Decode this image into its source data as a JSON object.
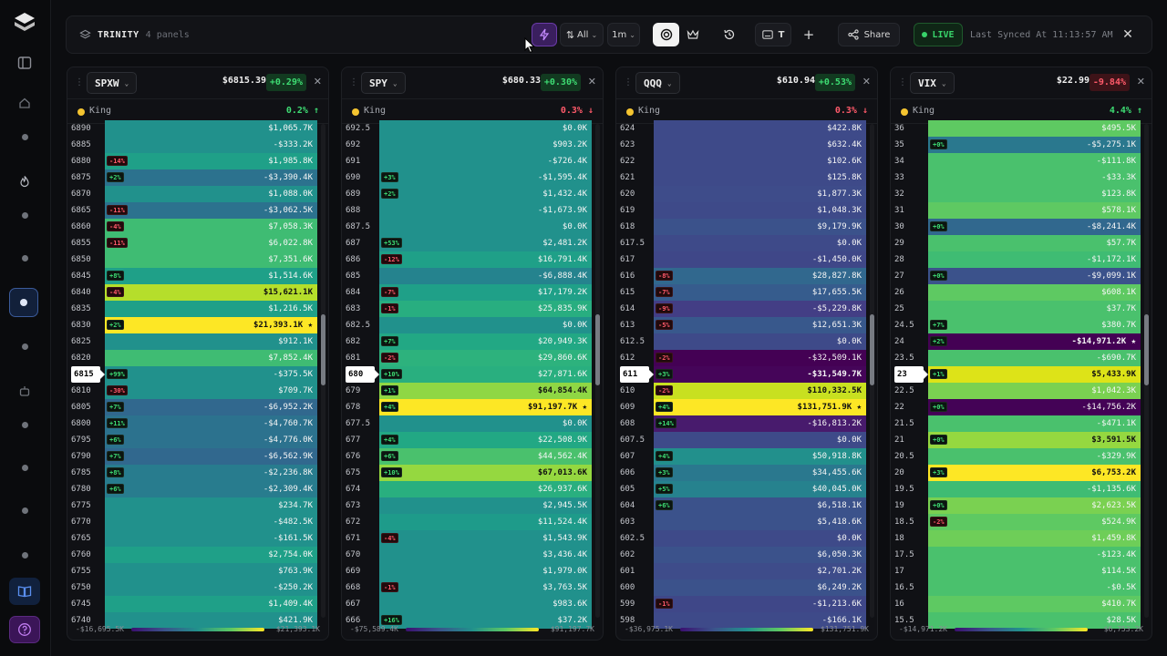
{
  "topbar": {
    "title": "TRINITY",
    "subtitle": "4 panels",
    "sort_label": "All",
    "interval_label": "1m",
    "t_label": "T",
    "share_label": "Share",
    "live_label": "LIVE",
    "sync_text": "Last Synced At 11:13:57 AM"
  },
  "panels": [
    {
      "id": "spxw",
      "ticker": "SPXW",
      "price": "$6815.39",
      "change": "+0.29%",
      "change_dir": "up",
      "king_label": "King",
      "king_value": "0.2% ↑",
      "king_dir": "up",
      "scale_min": "-$16,695.5K",
      "scale_max": "$21,393.1K",
      "thumb_pos": 0.45,
      "rows": [
        {
          "s": "6890",
          "v": "$1,065.7K",
          "c": "#21918c"
        },
        {
          "s": "6885",
          "v": "-$333.2K",
          "c": "#21918c"
        },
        {
          "s": "6880",
          "v": "$1,985.8K",
          "c": "#1fa088",
          "b": "-14%"
        },
        {
          "s": "6875",
          "v": "-$3,390.4K",
          "c": "#2c728e",
          "b": "+2%"
        },
        {
          "s": "6870",
          "v": "$1,088.0K",
          "c": "#21918c"
        },
        {
          "s": "6865",
          "v": "-$3,062.5K",
          "c": "#2c728e",
          "b": "-11%"
        },
        {
          "s": "6860",
          "v": "$7,058.3K",
          "c": "#3fbc73",
          "b": "-4%"
        },
        {
          "s": "6855",
          "v": "$6,022.8K",
          "c": "#3fbc73",
          "b": "-11%"
        },
        {
          "s": "6850",
          "v": "$7,351.6K",
          "c": "#3fbc73"
        },
        {
          "s": "6845",
          "v": "$1,514.6K",
          "c": "#1fa088",
          "b": "+8%"
        },
        {
          "s": "6840",
          "v": "$15,621.1K",
          "c": "#b5de2b",
          "b": "-4%"
        },
        {
          "s": "6835",
          "v": "$1,216.5K",
          "c": "#1fa088"
        },
        {
          "s": "6830",
          "v": "$21,393.1K",
          "c": "#fde725",
          "b": "+2%",
          "star": true
        },
        {
          "s": "6825",
          "v": "$912.1K",
          "c": "#21918c"
        },
        {
          "s": "6820",
          "v": "$7,852.4K",
          "c": "#3fbc73"
        },
        {
          "s": "6815",
          "v": "-$375.5K",
          "c": "#21918c",
          "b": "+99%",
          "cur": true
        },
        {
          "s": "6810",
          "v": "$709.7K",
          "c": "#21918c",
          "b": "-30%"
        },
        {
          "s": "6805",
          "v": "-$6,952.2K",
          "c": "#31688e",
          "b": "+7%"
        },
        {
          "s": "6800",
          "v": "-$4,760.7K",
          "c": "#2c728e",
          "b": "+11%"
        },
        {
          "s": "6795",
          "v": "-$4,776.0K",
          "c": "#2c728e",
          "b": "+6%"
        },
        {
          "s": "6790",
          "v": "-$6,562.9K",
          "c": "#31688e",
          "b": "+7%"
        },
        {
          "s": "6785",
          "v": "-$2,236.8K",
          "c": "#287c8e",
          "b": "+8%"
        },
        {
          "s": "6780",
          "v": "-$2,309.4K",
          "c": "#287c8e",
          "b": "+6%"
        },
        {
          "s": "6775",
          "v": "$234.7K",
          "c": "#21918c"
        },
        {
          "s": "6770",
          "v": "-$482.5K",
          "c": "#21918c"
        },
        {
          "s": "6765",
          "v": "-$161.5K",
          "c": "#21918c"
        },
        {
          "s": "6760",
          "v": "$2,754.0K",
          "c": "#1fa088"
        },
        {
          "s": "6755",
          "v": "$763.9K",
          "c": "#21918c"
        },
        {
          "s": "6750",
          "v": "-$250.2K",
          "c": "#21918c"
        },
        {
          "s": "6745",
          "v": "$1,409.4K",
          "c": "#1fa088"
        },
        {
          "s": "6740",
          "v": "$421.9K",
          "c": "#21918c"
        }
      ]
    },
    {
      "id": "spy",
      "ticker": "SPY",
      "price": "$680.33",
      "change": "+0.30%",
      "change_dir": "up",
      "king_label": "King",
      "king_value": "0.3% ↓",
      "king_dir": "dn",
      "scale_min": "-$75,589.4K",
      "scale_max": "$91,197.7K",
      "thumb_pos": 0.45,
      "rows": [
        {
          "s": "692.5",
          "v": "$0.0K",
          "c": "#21918c"
        },
        {
          "s": "692",
          "v": "$903.2K",
          "c": "#21918c"
        },
        {
          "s": "691",
          "v": "-$726.4K",
          "c": "#21918c"
        },
        {
          "s": "690",
          "v": "-$1,595.4K",
          "c": "#21918c",
          "b": "+3%"
        },
        {
          "s": "689",
          "v": "$1,432.4K",
          "c": "#21918c",
          "b": "+2%"
        },
        {
          "s": "688",
          "v": "-$1,673.9K",
          "c": "#21918c"
        },
        {
          "s": "687.5",
          "v": "$0.0K",
          "c": "#21918c"
        },
        {
          "s": "687",
          "v": "$2,481.2K",
          "c": "#21918c",
          "b": "+53%"
        },
        {
          "s": "686",
          "v": "$16,791.4K",
          "c": "#1fa088",
          "b": "-12%"
        },
        {
          "s": "685",
          "v": "-$6,888.4K",
          "c": "#25838e"
        },
        {
          "s": "684",
          "v": "$17,179.2K",
          "c": "#1fa088",
          "b": "-7%"
        },
        {
          "s": "683",
          "v": "$25,835.9K",
          "c": "#28ae80",
          "b": "-1%"
        },
        {
          "s": "682.5",
          "v": "$0.0K",
          "c": "#21918c"
        },
        {
          "s": "682",
          "v": "$20,949.3K",
          "c": "#22a884",
          "b": "+7%"
        },
        {
          "s": "681",
          "v": "$29,860.6K",
          "c": "#2db27d",
          "b": "-2%"
        },
        {
          "s": "680",
          "v": "$27,871.6K",
          "c": "#29af7f",
          "b": "+10%",
          "cur": true
        },
        {
          "s": "679",
          "v": "$64,854.4K",
          "c": "#8fd744",
          "b": "+1%"
        },
        {
          "s": "678",
          "v": "$91,197.7K",
          "c": "#fde725",
          "b": "+4%",
          "star": true
        },
        {
          "s": "677.5",
          "v": "$0.0K",
          "c": "#21918c"
        },
        {
          "s": "677",
          "v": "$22,508.9K",
          "c": "#22a884",
          "b": "+4%"
        },
        {
          "s": "676",
          "v": "$44,562.4K",
          "c": "#4ac16d",
          "b": "+6%"
        },
        {
          "s": "675",
          "v": "$67,013.6K",
          "c": "#95d840",
          "b": "+10%"
        },
        {
          "s": "674",
          "v": "$26,937.6K",
          "c": "#29af7f"
        },
        {
          "s": "673",
          "v": "$2,945.5K",
          "c": "#21918c"
        },
        {
          "s": "672",
          "v": "$11,524.4K",
          "c": "#1e9b8a"
        },
        {
          "s": "671",
          "v": "$1,543.9K",
          "c": "#21918c",
          "b": "-4%"
        },
        {
          "s": "670",
          "v": "$3,436.4K",
          "c": "#21918c"
        },
        {
          "s": "669",
          "v": "$1,979.0K",
          "c": "#21918c"
        },
        {
          "s": "668",
          "v": "$3,763.5K",
          "c": "#21918c",
          "b": "-1%"
        },
        {
          "s": "667",
          "v": "$983.6K",
          "c": "#21918c"
        },
        {
          "s": "666",
          "v": "$37.2K",
          "c": "#21918c",
          "b": "+16%"
        }
      ]
    },
    {
      "id": "qqq",
      "ticker": "QQQ",
      "price": "$610.94",
      "change": "+0.53%",
      "change_dir": "up",
      "king_label": "King",
      "king_value": "0.3% ↓",
      "king_dir": "dn",
      "scale_min": "-$36,975.1K",
      "scale_max": "$131,751.9K",
      "thumb_pos": 0.45,
      "rows": [
        {
          "s": "624",
          "v": "$422.8K",
          "c": "#3e4a89"
        },
        {
          "s": "623",
          "v": "$632.4K",
          "c": "#3e4a89"
        },
        {
          "s": "622",
          "v": "$102.6K",
          "c": "#3e4a89"
        },
        {
          "s": "621",
          "v": "$125.8K",
          "c": "#3e4a89"
        },
        {
          "s": "620",
          "v": "$1,877.3K",
          "c": "#3e4c8a"
        },
        {
          "s": "619",
          "v": "$1,048.3K",
          "c": "#3e4a89"
        },
        {
          "s": "618",
          "v": "$9,179.9K",
          "c": "#3b528b"
        },
        {
          "s": "617.5",
          "v": "$0.0K",
          "c": "#3e4a89"
        },
        {
          "s": "617",
          "v": "-$1,450.0K",
          "c": "#3f4788"
        },
        {
          "s": "616",
          "v": "$28,827.8K",
          "c": "#31688e",
          "b": "-8%"
        },
        {
          "s": "615",
          "v": "$17,655.5K",
          "c": "#365c8d",
          "b": "-7%"
        },
        {
          "s": "614",
          "v": "-$5,229.8K",
          "c": "#433e85",
          "b": "-9%"
        },
        {
          "s": "613",
          "v": "$12,651.3K",
          "c": "#38588c",
          "b": "-5%"
        },
        {
          "s": "612.5",
          "v": "$0.0K",
          "c": "#3e4a89"
        },
        {
          "s": "612",
          "v": "-$32,509.1K",
          "c": "#440154",
          "b": "-2%"
        },
        {
          "s": "611",
          "v": "-$31,549.7K",
          "c": "#450559",
          "b": "+3%",
          "cur": true,
          "bold": true
        },
        {
          "s": "610",
          "v": "$110,332.5K",
          "c": "#c8e020",
          "b": "-2%"
        },
        {
          "s": "609",
          "v": "$131,751.9K",
          "c": "#fde725",
          "b": "+4%",
          "star": true
        },
        {
          "s": "608",
          "v": "-$16,813.2K",
          "c": "#481b6d",
          "b": "+14%"
        },
        {
          "s": "607.5",
          "v": "$0.0K",
          "c": "#3e4a89"
        },
        {
          "s": "607",
          "v": "$50,918.8K",
          "c": "#22908c",
          "b": "+4%"
        },
        {
          "s": "606",
          "v": "$34,455.6K",
          "c": "#2a788e",
          "b": "+3%"
        },
        {
          "s": "605",
          "v": "$40,045.0K",
          "c": "#26828e",
          "b": "+5%"
        },
        {
          "s": "604",
          "v": "$6,518.1K",
          "c": "#3b528b",
          "b": "+6%"
        },
        {
          "s": "603",
          "v": "$5,418.6K",
          "c": "#3b528b"
        },
        {
          "s": "602.5",
          "v": "$0.0K",
          "c": "#3e4a89"
        },
        {
          "s": "602",
          "v": "$6,050.3K",
          "c": "#3b528b"
        },
        {
          "s": "601",
          "v": "$2,701.2K",
          "c": "#3e4c8a"
        },
        {
          "s": "600",
          "v": "$6,249.2K",
          "c": "#3b528b"
        },
        {
          "s": "599",
          "v": "-$1,213.6K",
          "c": "#3f4788",
          "b": "-1%"
        },
        {
          "s": "598",
          "v": "-$166.1K",
          "c": "#3e4a89"
        }
      ]
    },
    {
      "id": "vix",
      "ticker": "VIX",
      "price": "$22.99",
      "change": "-9.84%",
      "change_dir": "dn",
      "king_label": "King",
      "king_value": "4.4% ↑",
      "king_dir": "up",
      "scale_min": "-$14,971.2K",
      "scale_max": "$6,753.2K",
      "thumb_pos": 0.45,
      "rows": [
        {
          "s": "36",
          "v": "$495.5K",
          "c": "#5ec962"
        },
        {
          "s": "35",
          "v": "-$5,275.1K",
          "c": "#2a788e",
          "b": "+0%"
        },
        {
          "s": "34",
          "v": "-$111.8K",
          "c": "#4ac16d"
        },
        {
          "s": "33",
          "v": "-$33.3K",
          "c": "#4ac16d"
        },
        {
          "s": "32",
          "v": "$123.8K",
          "c": "#4ac16d"
        },
        {
          "s": "31",
          "v": "$578.1K",
          "c": "#5ec962"
        },
        {
          "s": "30",
          "v": "-$8,241.4K",
          "c": "#31688e",
          "b": "+0%"
        },
        {
          "s": "29",
          "v": "$57.7K",
          "c": "#4ac16d"
        },
        {
          "s": "28",
          "v": "-$1,172.1K",
          "c": "#3fbc73"
        },
        {
          "s": "27",
          "v": "-$9,099.1K",
          "c": "#3b528b",
          "b": "+0%"
        },
        {
          "s": "26",
          "v": "$608.1K",
          "c": "#5ec962"
        },
        {
          "s": "25",
          "v": "$37.7K",
          "c": "#4ac16d"
        },
        {
          "s": "24.5",
          "v": "$380.7K",
          "c": "#4ac16d",
          "b": "+7%"
        },
        {
          "s": "24",
          "v": "-$14,971.2K",
          "c": "#440154",
          "b": "+2%",
          "star": true
        },
        {
          "s": "23.5",
          "v": "-$690.7K",
          "c": "#4ac16d"
        },
        {
          "s": "23",
          "v": "$5,433.9K",
          "c": "#dde318",
          "b": "+1%",
          "cur": true
        },
        {
          "s": "22.5",
          "v": "$1,042.3K",
          "c": "#7ad151"
        },
        {
          "s": "22",
          "v": "-$14,756.2K",
          "c": "#440256",
          "b": "+0%"
        },
        {
          "s": "21.5",
          "v": "-$471.1K",
          "c": "#4ac16d"
        },
        {
          "s": "21",
          "v": "$3,591.5K",
          "c": "#95d840",
          "b": "+0%"
        },
        {
          "s": "20.5",
          "v": "-$329.9K",
          "c": "#4ac16d"
        },
        {
          "s": "20",
          "v": "$6,753.2K",
          "c": "#fde725",
          "b": "+3%"
        },
        {
          "s": "19.5",
          "v": "-$1,135.6K",
          "c": "#3fbc73"
        },
        {
          "s": "19",
          "v": "$2,623.5K",
          "c": "#7ad151",
          "b": "+0%"
        },
        {
          "s": "18.5",
          "v": "$524.9K",
          "c": "#5ec962",
          "b": "-2%"
        },
        {
          "s": "18",
          "v": "$1,459.8K",
          "c": "#6ece58"
        },
        {
          "s": "17.5",
          "v": "-$123.4K",
          "c": "#4ac16d"
        },
        {
          "s": "17",
          "v": "$114.5K",
          "c": "#4ac16d"
        },
        {
          "s": "16.5",
          "v": "-$0.5K",
          "c": "#4ac16d"
        },
        {
          "s": "16",
          "v": "$410.7K",
          "c": "#5ec962"
        },
        {
          "s": "15.5",
          "v": "$28.5K",
          "c": "#4ac16d"
        }
      ]
    }
  ]
}
